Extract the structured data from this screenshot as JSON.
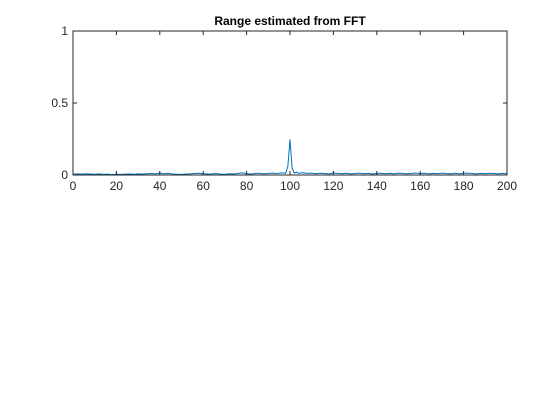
{
  "chart_data": {
    "type": "line",
    "title": "Range estimated from FFT",
    "xlabel": "",
    "ylabel": "",
    "xlim": [
      0,
      200
    ],
    "ylim": [
      0,
      1
    ],
    "xticks": [
      0,
      20,
      40,
      60,
      80,
      100,
      120,
      140,
      160,
      180,
      200
    ],
    "yticks": [
      0,
      0.5,
      1
    ],
    "ytick_labels": [
      "0",
      "0.5",
      "1"
    ],
    "grid": false,
    "box": true,
    "colors": {
      "line": "#0072BD",
      "axes": "#262626",
      "background": "#ffffff"
    },
    "series": [
      {
        "x": [
          0,
          2,
          4,
          6,
          8,
          10,
          12,
          14,
          16,
          18,
          20,
          22,
          24,
          26,
          28,
          30,
          32,
          34,
          36,
          38,
          40,
          42,
          44,
          46,
          48,
          50,
          52,
          54,
          56,
          58,
          60,
          62,
          64,
          66,
          68,
          70,
          72,
          74,
          76,
          78,
          80,
          82,
          84,
          86,
          88,
          90,
          92,
          94,
          96,
          98,
          99,
          100,
          101,
          102,
          103,
          104,
          106,
          108,
          110,
          112,
          114,
          116,
          118,
          120,
          122,
          124,
          126,
          128,
          130,
          132,
          134,
          136,
          138,
          140,
          142,
          144,
          146,
          148,
          150,
          152,
          154,
          156,
          158,
          160,
          162,
          164,
          166,
          168,
          170,
          172,
          174,
          176,
          178,
          180,
          182,
          184,
          186,
          188,
          190,
          192,
          194,
          196,
          198,
          200
        ],
        "values": [
          0.005,
          0.008,
          0.006,
          0.009,
          0.007,
          0.005,
          0.008,
          0.004,
          0.006,
          0.003,
          0.005,
          0.004,
          0.006,
          0.007,
          0.005,
          0.008,
          0.006,
          0.009,
          0.01,
          0.008,
          0.013,
          0.009,
          0.011,
          0.007,
          0.005,
          0.004,
          0.006,
          0.008,
          0.01,
          0.012,
          0.009,
          0.007,
          0.008,
          0.01,
          0.006,
          0.005,
          0.009,
          0.007,
          0.011,
          0.015,
          0.009,
          0.007,
          0.01,
          0.012,
          0.008,
          0.011,
          0.013,
          0.01,
          0.015,
          0.012,
          0.06,
          0.245,
          0.045,
          0.014,
          0.019,
          0.012,
          0.016,
          0.011,
          0.013,
          0.009,
          0.012,
          0.01,
          0.008,
          0.014,
          0.011,
          0.009,
          0.012,
          0.008,
          0.01,
          0.013,
          0.009,
          0.011,
          0.007,
          0.01,
          0.012,
          0.009,
          0.011,
          0.008,
          0.013,
          0.01,
          0.009,
          0.011,
          0.014,
          0.01,
          0.012,
          0.008,
          0.011,
          0.009,
          0.013,
          0.01,
          0.008,
          0.012,
          0.009,
          0.011,
          0.013,
          0.01,
          0.008,
          0.011,
          0.009,
          0.012,
          0.01,
          0.008,
          0.011,
          0.009
        ]
      }
    ]
  }
}
